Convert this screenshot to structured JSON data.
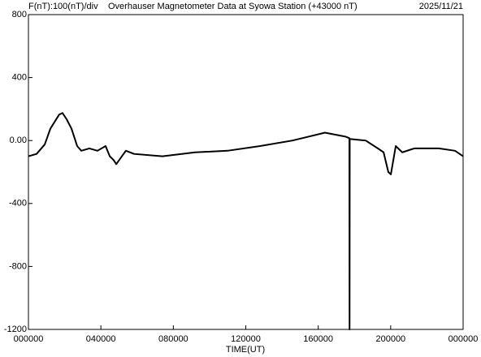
{
  "chart_data": {
    "type": "line",
    "y_scale_label": "F(nT):100(nT)/div",
    "title": "Overhauser Magnetometer Data at Syowa Station (+43000 nT)",
    "date": "2025/11/21",
    "x_label": "TIME(UT)",
    "x": [
      0.0,
      0.45,
      0.9,
      1.21,
      1.48,
      1.7,
      1.88,
      2.11,
      2.38,
      2.69,
      2.92,
      3.36,
      3.81,
      4.26,
      4.49,
      4.71,
      4.85,
      5.16,
      5.38,
      5.83,
      7.4,
      9.2,
      10.99,
      12.79,
      14.58,
      16.37,
      17.5,
      17.72,
      17.73,
      17.74,
      18.62,
      19.29,
      19.61,
      19.87,
      20.01,
      20.28,
      20.64,
      21.31,
      22.66,
      23.55,
      24.0
    ],
    "series": [
      {
        "color": "#000000",
        "values": [
          -100,
          -85,
          -25,
          75,
          125,
          165,
          175,
          135,
          75,
          -35,
          -65,
          -50,
          -65,
          -35,
          -100,
          -125,
          -150,
          -100,
          -65,
          -85,
          -100,
          -75,
          -65,
          -35,
          0,
          50,
          25,
          15,
          -1200,
          10,
          0,
          -50,
          -75,
          -200,
          -215,
          -35,
          -75,
          -50,
          -50,
          -65,
          -100
        ]
      }
    ],
    "xlim": [
      0,
      24
    ],
    "xticks": [
      {
        "value": 0,
        "label": "000000"
      },
      {
        "value": 4,
        "label": "040000"
      },
      {
        "value": 8,
        "label": "080000"
      },
      {
        "value": 12,
        "label": "120000"
      },
      {
        "value": 16,
        "label": "160000"
      },
      {
        "value": 20,
        "label": "200000"
      },
      {
        "value": 24,
        "label": "000000"
      }
    ],
    "ylim": [
      -1200,
      800
    ],
    "yticks": [
      -1200,
      -800,
      -400,
      {
        "value": 0,
        "label": "0.00"
      },
      400,
      800
    ],
    "grid": false
  }
}
